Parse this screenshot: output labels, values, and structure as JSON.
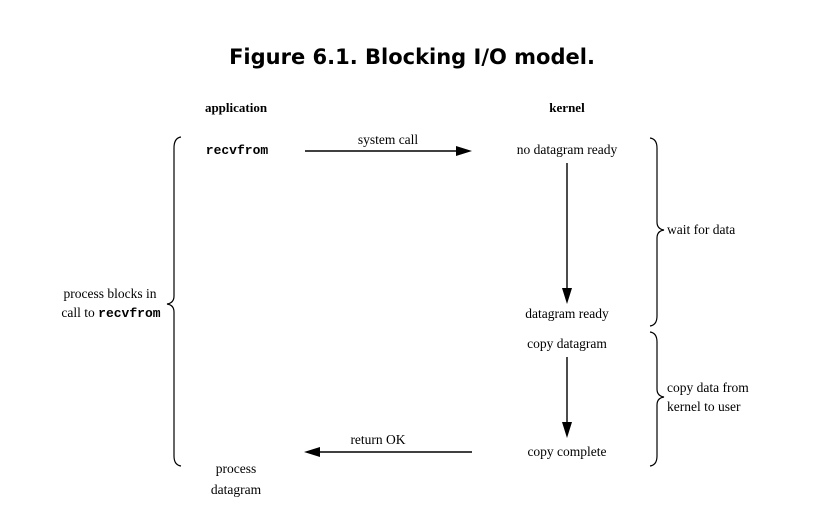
{
  "title": "Figure 6.1. Blocking I/O model.",
  "columns": {
    "application": "application",
    "kernel": "kernel"
  },
  "application": {
    "call": "recvfrom",
    "blocks_line1": "process blocks in",
    "blocks_line2_prefix": "call to ",
    "blocks_line2_code": "recvfrom",
    "process_line1": "process",
    "process_line2": "datagram"
  },
  "messages": {
    "system_call": "system call",
    "return_ok": "return OK"
  },
  "kernel": {
    "no_datagram_ready": "no datagram ready",
    "datagram_ready": "datagram ready",
    "copy_datagram": "copy datagram",
    "copy_complete": "copy complete"
  },
  "phases": {
    "wait_for_data": "wait for data",
    "copy_line1": "copy data from",
    "copy_line2": "kernel to user"
  }
}
